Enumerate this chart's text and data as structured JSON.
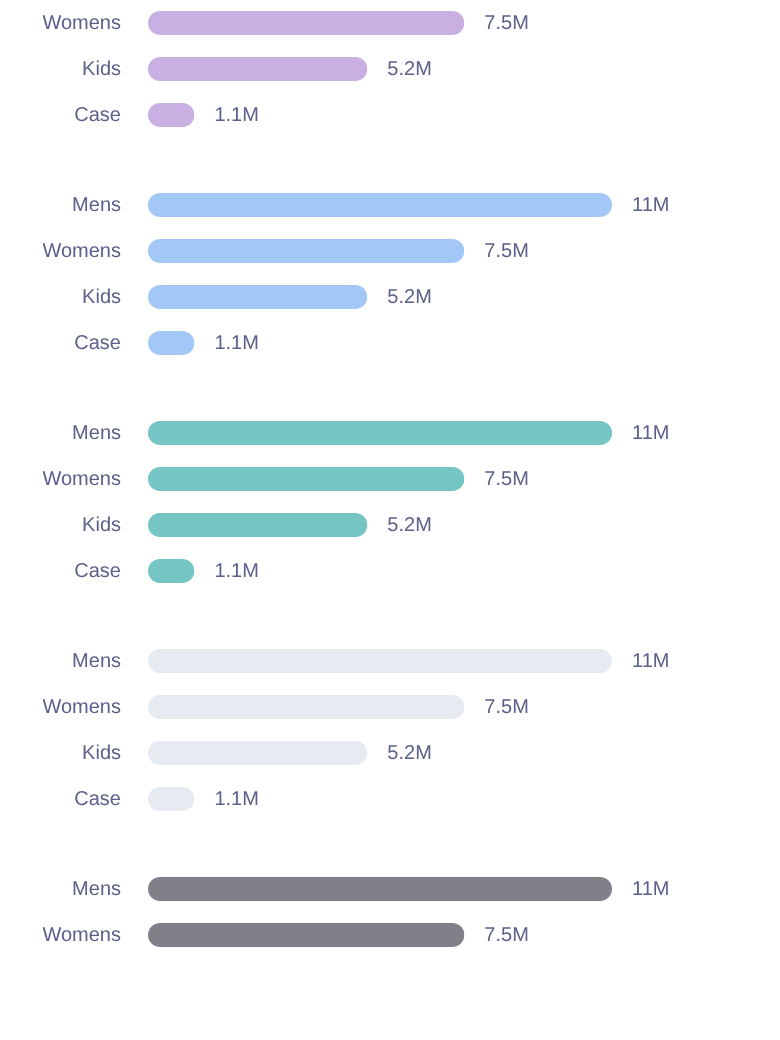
{
  "chart_data": [
    {
      "type": "bar",
      "orientation": "horizontal",
      "categories": [
        "Womens",
        "Kids",
        "Case"
      ],
      "series": [
        {
          "color": "#c8b0e2",
          "values": [
            7.5,
            5.2,
            1.1
          ],
          "value_labels": [
            "7.5M",
            "5.2M",
            "1.1M"
          ]
        }
      ]
    },
    {
      "type": "bar",
      "orientation": "horizontal",
      "categories": [
        "Mens",
        "Womens",
        "Kids",
        "Case"
      ],
      "series": [
        {
          "color": "#a3c8f7",
          "values": [
            11,
            7.5,
            5.2,
            1.1
          ],
          "value_labels": [
            "11M",
            "7.5M",
            "5.2M",
            "1.1M"
          ]
        }
      ]
    },
    {
      "type": "bar",
      "orientation": "horizontal",
      "categories": [
        "Mens",
        "Womens",
        "Kids",
        "Case"
      ],
      "series": [
        {
          "color": "#74c5c4",
          "values": [
            11,
            7.5,
            5.2,
            1.1
          ],
          "value_labels": [
            "11M",
            "7.5M",
            "5.2M",
            "1.1M"
          ]
        }
      ]
    },
    {
      "type": "bar",
      "orientation": "horizontal",
      "categories": [
        "Mens",
        "Womens",
        "Kids",
        "Case"
      ],
      "series": [
        {
          "color": "#e6ebf1",
          "values": [
            11,
            7.5,
            5.2,
            1.1
          ],
          "value_labels": [
            "11M",
            "7.5M",
            "5.2M",
            "1.1M"
          ]
        }
      ]
    },
    {
      "type": "bar",
      "orientation": "horizontal",
      "categories": [
        "Mens",
        "Womens"
      ],
      "series": [
        {
          "color": "#7f8088",
          "values": [
            11,
            7.5
          ],
          "value_labels": [
            "11M",
            "7.5M"
          ]
        }
      ]
    }
  ]
}
